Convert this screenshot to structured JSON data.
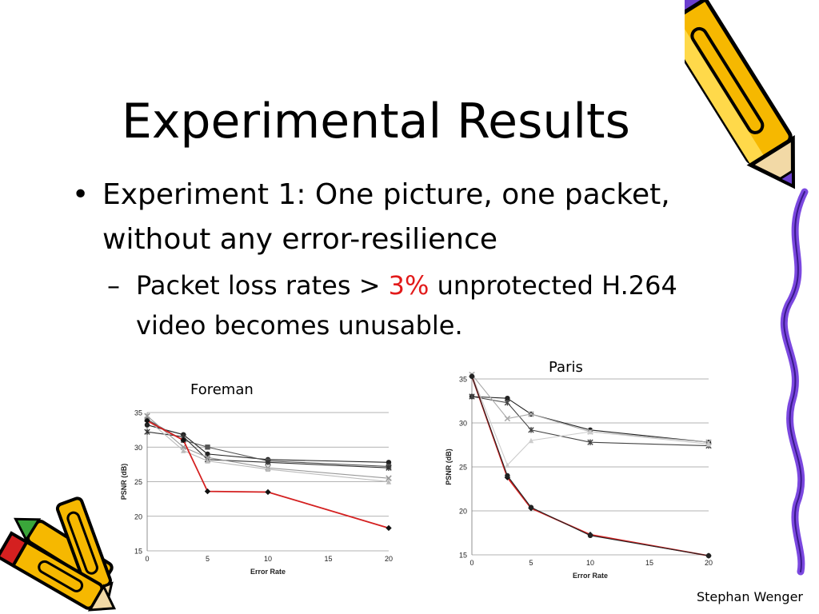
{
  "slide": {
    "title": "Experimental Results",
    "bullet1": {
      "symbol": "•",
      "text": "Experiment 1: One picture, one packet, without any error-resilience"
    },
    "bullet2": {
      "symbol": "–",
      "text_before": "Packet loss rates > ",
      "highlight": "3%",
      "text_after": " unprotected H.264 video becomes unusable.",
      "highlight_color": "#e21a1a"
    },
    "footer": "Stephan Wenger"
  },
  "chart_data": [
    {
      "type": "line",
      "title": "Foreman",
      "xlabel": "Error Rate",
      "ylabel": "PSNR (dB)",
      "xlim": [
        0,
        20
      ],
      "ylim": [
        15,
        35
      ],
      "xticks": [
        0,
        5,
        10,
        15,
        20
      ],
      "yticks": [
        15,
        20,
        25,
        30,
        35
      ],
      "grid": "horizontal",
      "series": [
        {
          "color": "#222222",
          "marker": "circle",
          "x": [
            0,
            3,
            5,
            10,
            20
          ],
          "y": [
            33.2,
            31.8,
            29.0,
            28.2,
            27.8
          ]
        },
        {
          "color": "#555555",
          "marker": "square",
          "x": [
            0,
            3,
            5,
            10,
            20
          ],
          "y": [
            34.0,
            31.0,
            30.0,
            28.0,
            27.2
          ]
        },
        {
          "color": "#333333",
          "marker": "star",
          "x": [
            0,
            3,
            5,
            10,
            20
          ],
          "y": [
            32.2,
            31.5,
            28.2,
            27.8,
            27.0
          ]
        },
        {
          "color": "#999999",
          "marker": "x",
          "x": [
            0,
            3,
            5,
            10,
            20
          ],
          "y": [
            34.5,
            30.0,
            28.5,
            27.0,
            25.5
          ]
        },
        {
          "color": "#bbbbbb",
          "marker": "triangle",
          "x": [
            0,
            3,
            5,
            10,
            20
          ],
          "y": [
            34.0,
            29.5,
            28.0,
            26.8,
            25.0
          ]
        },
        {
          "color": "#d42020",
          "marker": "diamond",
          "x": [
            0,
            3,
            5,
            10,
            20
          ],
          "y": [
            33.8,
            31.0,
            23.6,
            23.5,
            18.3
          ]
        }
      ]
    },
    {
      "type": "line",
      "title": "Paris",
      "xlabel": "Error Rate",
      "ylabel": "PSNR (dB)",
      "xlim": [
        0,
        20
      ],
      "ylim": [
        15,
        35
      ],
      "xticks": [
        0,
        5,
        10,
        15,
        20
      ],
      "yticks": [
        15,
        20,
        25,
        30,
        35
      ],
      "grid": "horizontal",
      "series": [
        {
          "color": "#222222",
          "marker": "circle",
          "x": [
            0,
            3,
            5,
            10,
            20
          ],
          "y": [
            33.0,
            32.8,
            31.0,
            29.2,
            27.8
          ]
        },
        {
          "color": "#444444",
          "marker": "star",
          "x": [
            0,
            3,
            5,
            10,
            20
          ],
          "y": [
            33.0,
            32.3,
            29.2,
            27.8,
            27.4
          ]
        },
        {
          "color": "#aaaaaa",
          "marker": "x",
          "x": [
            0,
            3,
            5,
            10,
            20
          ],
          "y": [
            35.5,
            30.5,
            31.0,
            29.0,
            27.8
          ]
        },
        {
          "color": "#cccccc",
          "marker": "triangle",
          "x": [
            0,
            3,
            5,
            10,
            20
          ],
          "y": [
            35.5,
            25.2,
            28.0,
            29.0,
            27.6
          ]
        },
        {
          "color": "#d42020",
          "marker": "diamond",
          "x": [
            0,
            3,
            5,
            10,
            20
          ],
          "y": [
            35.3,
            23.8,
            20.3,
            17.3,
            14.9
          ]
        },
        {
          "color": "#222222",
          "marker": "circle",
          "x": [
            0,
            3,
            5,
            10,
            20
          ],
          "y": [
            35.3,
            24.0,
            20.4,
            17.2,
            14.9
          ]
        }
      ]
    }
  ]
}
